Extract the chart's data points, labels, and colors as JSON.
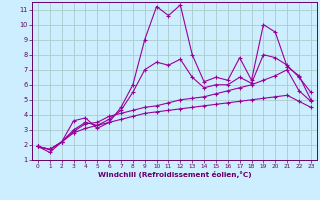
{
  "bg_color": "#cceeff",
  "line_color": "#990099",
  "grid_color": "#aacccc",
  "xlabel": "Windchill (Refroidissement éolien,°C)",
  "xlabel_color": "#660066",
  "tick_color": "#660066",
  "ylim": [
    1,
    11.5
  ],
  "xlim": [
    -0.5,
    23.5
  ],
  "yticks": [
    1,
    2,
    3,
    4,
    5,
    6,
    7,
    8,
    9,
    10,
    11
  ],
  "xticks": [
    0,
    1,
    2,
    3,
    4,
    5,
    6,
    7,
    8,
    9,
    10,
    11,
    12,
    13,
    14,
    15,
    16,
    17,
    18,
    19,
    20,
    21,
    22,
    23
  ],
  "series": [
    {
      "x": [
        0,
        1,
        2,
        3,
        4,
        5,
        6,
        7,
        8,
        9,
        10,
        11,
        12,
        13,
        14,
        15,
        16,
        17,
        18,
        19,
        20,
        21,
        22,
        23
      ],
      "y": [
        1.9,
        1.5,
        2.2,
        3.6,
        3.8,
        3.1,
        3.5,
        4.5,
        6.0,
        9.0,
        11.2,
        10.6,
        11.3,
        8.0,
        6.2,
        6.5,
        6.3,
        7.8,
        6.3,
        10.0,
        9.5,
        7.2,
        6.6,
        5.0
      ]
    },
    {
      "x": [
        0,
        1,
        2,
        3,
        4,
        5,
        6,
        7,
        8,
        9,
        10,
        11,
        12,
        13,
        14,
        15,
        16,
        17,
        18,
        19,
        20,
        21,
        22,
        23
      ],
      "y": [
        1.9,
        1.7,
        2.2,
        3.0,
        3.5,
        3.3,
        3.7,
        4.3,
        5.5,
        7.0,
        7.5,
        7.3,
        7.7,
        6.5,
        5.8,
        6.0,
        6.0,
        6.5,
        6.1,
        8.0,
        7.8,
        7.3,
        6.5,
        5.5
      ]
    },
    {
      "x": [
        0,
        1,
        2,
        3,
        4,
        5,
        6,
        7,
        8,
        9,
        10,
        11,
        12,
        13,
        14,
        15,
        16,
        17,
        18,
        19,
        20,
        21,
        22,
        23
      ],
      "y": [
        1.9,
        1.7,
        2.2,
        2.9,
        3.4,
        3.5,
        3.9,
        4.1,
        4.3,
        4.5,
        4.6,
        4.8,
        5.0,
        5.1,
        5.2,
        5.4,
        5.6,
        5.8,
        6.0,
        6.3,
        6.6,
        7.0,
        5.6,
        4.9
      ]
    },
    {
      "x": [
        0,
        1,
        2,
        3,
        4,
        5,
        6,
        7,
        8,
        9,
        10,
        11,
        12,
        13,
        14,
        15,
        16,
        17,
        18,
        19,
        20,
        21,
        22,
        23
      ],
      "y": [
        1.9,
        1.7,
        2.2,
        2.8,
        3.1,
        3.3,
        3.5,
        3.7,
        3.9,
        4.1,
        4.2,
        4.3,
        4.4,
        4.5,
        4.6,
        4.7,
        4.8,
        4.9,
        5.0,
        5.1,
        5.2,
        5.3,
        4.9,
        4.5
      ]
    }
  ]
}
